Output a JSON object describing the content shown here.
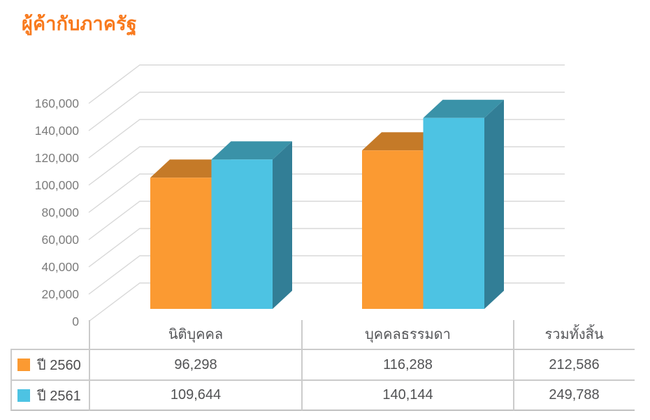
{
  "title": "ผู้ค้ากับภาครัฐ",
  "colors": {
    "title": "#F8791C",
    "grid": "#D8D8D8",
    "axis_text": "#7C7C7C",
    "table_text": "#515254",
    "table_border": "#CBCBCB",
    "series1_front": "#FB9A32",
    "series1_top": "#C57A28",
    "series1_side": "#AD6B20",
    "series2_front": "#4DC3E3",
    "series2_top": "#3A92A8",
    "series2_side": "#327E96"
  },
  "chart_data": {
    "type": "bar",
    "style": "3d-clustered",
    "title": "ผู้ค้ากับภาครัฐ",
    "categories": [
      "นิติบุคคล",
      "บุคคลธรรมดา"
    ],
    "series": [
      {
        "name": "ปี 2560",
        "color": "#FB9A32",
        "values": [
          96298,
          116288
        ],
        "total": 212586
      },
      {
        "name": "ปี 2561",
        "color": "#4DC3E3",
        "values": [
          109644,
          140144
        ],
        "total": 249788
      }
    ],
    "xlabel": "",
    "ylabel": "",
    "ylim": [
      0,
      160000
    ],
    "ytick_step": 20000,
    "grid": true,
    "legend_position": "bottom-table"
  },
  "yaxis_labels": [
    "0",
    "20,000",
    "40,000",
    "60,000",
    "80,000",
    "100,000",
    "120,000",
    "140,000",
    "160,000"
  ],
  "table": {
    "columns": [
      "นิติบุคคล",
      "บุคคลธรรมดา",
      "รวมทั้งสิ้น"
    ],
    "rows": [
      {
        "label": "ปี 2560",
        "values": [
          "96,298",
          "116,288",
          "212,586"
        ]
      },
      {
        "label": "ปี 2561",
        "values": [
          "109,644",
          "140,144",
          "249,788"
        ]
      }
    ]
  }
}
